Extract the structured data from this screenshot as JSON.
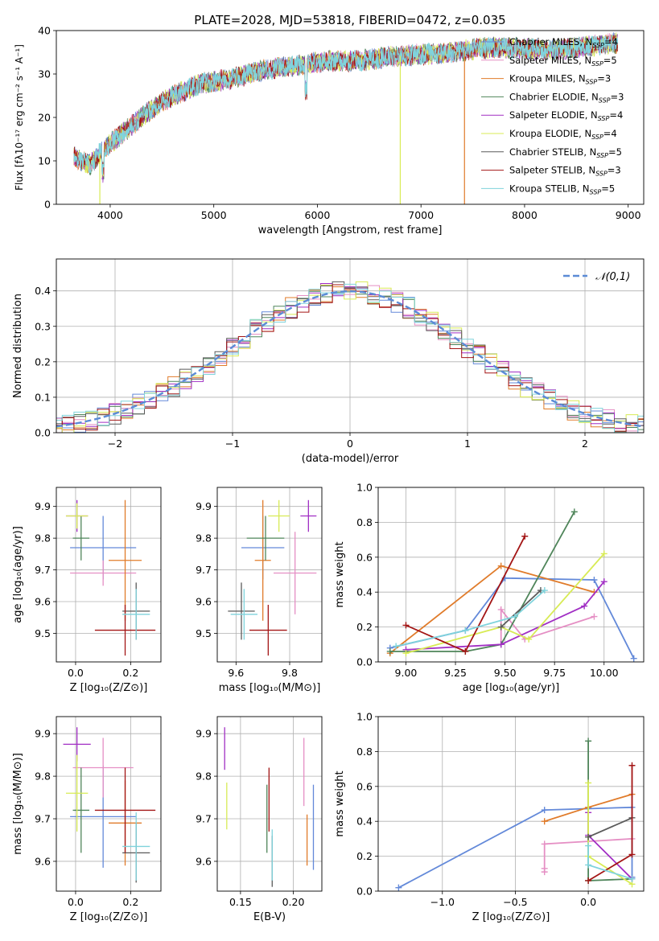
{
  "colors": [
    "#6389d9",
    "#e58fc4",
    "#e07b2a",
    "#4f855a",
    "#a12fc4",
    "#d8eb55",
    "#5a5a5a",
    "#a31515",
    "#7fd3dc"
  ],
  "chart_data": [
    {
      "id": "spectrum",
      "type": "line",
      "title": "PLATE=2028, MJD=53818, FIBERID=0472, z=0.035",
      "xlabel": "wavelength [Angstrom, rest frame]",
      "ylabel": "Flux [fλ10⁻¹⁷ erg cm⁻² s⁻¹ A⁻¹]",
      "xlim": [
        3480,
        9150
      ],
      "ylim": [
        0,
        40
      ],
      "xticks": [
        4000,
        5000,
        6000,
        7000,
        8000,
        9000
      ],
      "yticks": [
        0,
        10,
        20,
        30,
        40
      ],
      "grid": false,
      "legend": "top-right",
      "series": [
        {
          "name": "Chabrier MILES, N_SSP=4"
        },
        {
          "name": "Salpeter MILES, N_SSP=5"
        },
        {
          "name": "Kroupa MILES, N_SSP=3"
        },
        {
          "name": "Chabrier ELODIE, N_SSP=3"
        },
        {
          "name": "Salpeter ELODIE, N_SSP=4"
        },
        {
          "name": "Kroupa ELODIE, N_SSP=4"
        },
        {
          "name": "Chabrier STELIB, N_SSP=5"
        },
        {
          "name": "Salpeter STELIB, N_SSP=3"
        },
        {
          "name": "Kroupa STELIB, N_SSP=5"
        }
      ],
      "continuum": {
        "x": [
          3650,
          3800,
          3950,
          4150,
          4350,
          4600,
          4900,
          5200,
          5500,
          5800,
          6100,
          6400,
          6700,
          7000,
          7300,
          7600,
          7900,
          8200,
          8500,
          8800,
          8900
        ],
        "y": [
          11,
          9,
          13,
          17,
          21,
          25,
          28,
          29,
          31,
          32,
          33,
          33,
          34,
          34.5,
          35,
          36,
          36,
          35.5,
          36,
          37,
          37
        ]
      },
      "drops": [
        {
          "x": 3900,
          "series": 5
        },
        {
          "x": 6800,
          "series": 5
        },
        {
          "x": 7420,
          "series": 2
        }
      ]
    },
    {
      "id": "residuals",
      "type": "bar",
      "xlabel": "(data-model)/error",
      "ylabel": "Normed distribution",
      "xlim": [
        -2.5,
        2.5
      ],
      "ylim": [
        0,
        0.49
      ],
      "xticks": [
        -2,
        -1,
        0,
        1,
        2
      ],
      "yticks": [
        0.0,
        0.1,
        0.2,
        0.3,
        0.4
      ],
      "grid": true,
      "legend": "top-right",
      "reference": {
        "name": "𝒩(0,1)",
        "mean": 0,
        "sigma": 1
      },
      "bin_width": 0.1,
      "noise": 0.03
    },
    {
      "id": "age-vs-Z",
      "type": "scatter",
      "xlabel": "Z [log₁₀(Z/Z⊙)]",
      "ylabel": "age  [log₁₀(age/yr)]",
      "xlim": [
        -0.07,
        0.31
      ],
      "ylim": [
        9.41,
        9.96
      ],
      "xticks": [
        0.0,
        0.2
      ],
      "yticks": [
        9.5,
        9.6,
        9.7,
        9.8,
        9.9
      ],
      "grid": true,
      "points": [
        {
          "series": 0,
          "x": 0.1,
          "y": 9.77,
          "xerr": 0.12,
          "yerr": 0.1
        },
        {
          "series": 1,
          "x": 0.1,
          "y": 9.69,
          "xerr": 0.12,
          "yerr": 0.04
        },
        {
          "series": 2,
          "x": 0.18,
          "y": 9.73,
          "xerr": 0.06,
          "yerr": 0.19
        },
        {
          "series": 3,
          "x": 0.02,
          "y": 9.8,
          "xerr": 0.03,
          "yerr": 0.07
        },
        {
          "series": 4,
          "x": 0.005,
          "y": 9.87,
          "xerr": 0.04,
          "yerr": 0.05
        },
        {
          "series": 5,
          "x": 0.005,
          "y": 9.87,
          "xerr": 0.04,
          "yerr": 0.04
        },
        {
          "series": 6,
          "x": 0.22,
          "y": 9.57,
          "xerr": 0.05,
          "yerr": 0.09
        },
        {
          "series": 7,
          "x": 0.18,
          "y": 9.51,
          "xerr": 0.11,
          "yerr": 0.08
        },
        {
          "series": 8,
          "x": 0.22,
          "y": 9.56,
          "xerr": 0.05,
          "yerr": 0.08
        }
      ]
    },
    {
      "id": "age-vs-mass",
      "type": "scatter",
      "xlabel": "mass [log₁₀(M/M⊙)]",
      "ylabel": "",
      "xlim": [
        9.53,
        9.92
      ],
      "ylim": [
        9.41,
        9.96
      ],
      "xticks": [
        9.6,
        9.8
      ],
      "yticks": [
        9.5,
        9.6,
        9.7,
        9.8,
        9.9
      ],
      "grid": true,
      "points": [
        {
          "series": 0,
          "x": 9.7,
          "y": 9.77,
          "xerr": 0.08,
          "yerr": 0.1
        },
        {
          "series": 1,
          "x": 9.82,
          "y": 9.69,
          "xerr": 0.08,
          "yerr": 0.13
        },
        {
          "series": 2,
          "x": 9.7,
          "y": 9.73,
          "xerr": 0.03,
          "yerr": 0.19
        },
        {
          "series": 3,
          "x": 9.71,
          "y": 9.8,
          "xerr": 0.07,
          "yerr": 0.07
        },
        {
          "series": 4,
          "x": 9.87,
          "y": 9.87,
          "xerr": 0.03,
          "yerr": 0.05
        },
        {
          "series": 5,
          "x": 9.76,
          "y": 9.87,
          "xerr": 0.04,
          "yerr": 0.05
        },
        {
          "series": 6,
          "x": 9.62,
          "y": 9.57,
          "xerr": 0.05,
          "yerr": 0.09
        },
        {
          "series": 7,
          "x": 9.72,
          "y": 9.51,
          "xerr": 0.07,
          "yerr": 0.08
        },
        {
          "series": 8,
          "x": 9.63,
          "y": 9.56,
          "xerr": 0.05,
          "yerr": 0.08
        }
      ]
    },
    {
      "id": "massweight-vs-age",
      "type": "line",
      "xlabel": "age  [log₁₀(age/yr)]",
      "ylabel": "mass weight",
      "xlim": [
        8.86,
        10.2
      ],
      "ylim": [
        0,
        1
      ],
      "xticks": [
        9.0,
        9.25,
        9.5,
        9.75,
        10.0
      ],
      "yticks": [
        0.0,
        0.2,
        0.4,
        0.6,
        0.8,
        1.0
      ],
      "grid": true,
      "series": [
        {
          "series": 0,
          "x": [
            8.92,
            9.3,
            9.5,
            9.95,
            10.15
          ],
          "y": [
            0.08,
            0.18,
            0.48,
            0.47,
            0.02
          ]
        },
        {
          "series": 1,
          "x": [
            9.48,
            9.48,
            9.6,
            9.95
          ],
          "y": [
            0.1,
            0.3,
            0.13,
            0.26
          ]
        },
        {
          "series": 2,
          "x": [
            8.92,
            9.48,
            9.95
          ],
          "y": [
            0.05,
            0.55,
            0.4
          ]
        },
        {
          "series": 3,
          "x": [
            8.92,
            9.3,
            9.48,
            9.85
          ],
          "y": [
            0.06,
            0.06,
            0.1,
            0.86
          ]
        },
        {
          "series": 4,
          "x": [
            9.0,
            9.48,
            9.9,
            10.0
          ],
          "y": [
            0.07,
            0.1,
            0.32,
            0.46
          ]
        },
        {
          "series": 5,
          "x": [
            9.0,
            9.48,
            9.62,
            10.0
          ],
          "y": [
            0.05,
            0.2,
            0.13,
            0.62
          ]
        },
        {
          "series": 6,
          "x": [
            9.48,
            9.68
          ],
          "y": [
            0.2,
            0.41
          ]
        },
        {
          "series": 7,
          "x": [
            9.0,
            9.3,
            9.6
          ],
          "y": [
            0.21,
            0.06,
            0.72
          ]
        },
        {
          "series": 8,
          "x": [
            8.95,
            9.3,
            9.55,
            9.7
          ],
          "y": [
            0.09,
            0.18,
            0.26,
            0.41
          ]
        }
      ]
    },
    {
      "id": "mass-vs-Z",
      "type": "scatter",
      "xlabel": "Z [log₁₀(Z/Z⊙)]",
      "ylabel": "mass [log₁₀(M/M⊙)]",
      "xlim": [
        -0.07,
        0.31
      ],
      "ylim": [
        9.53,
        9.94
      ],
      "xticks": [
        0.0,
        0.2
      ],
      "yticks": [
        9.6,
        9.7,
        9.8,
        9.9
      ],
      "grid": true,
      "points": [
        {
          "series": 0,
          "x": 0.1,
          "y": 9.705,
          "xerr": 0.12,
          "yerr": 0.12
        },
        {
          "series": 1,
          "x": 0.1,
          "y": 9.82,
          "xerr": 0.11,
          "yerr": 0.07
        },
        {
          "series": 2,
          "x": 0.18,
          "y": 9.69,
          "xerr": 0.06,
          "yerr": 0.1
        },
        {
          "series": 3,
          "x": 0.02,
          "y": 9.72,
          "xerr": 0.03,
          "yerr": 0.1
        },
        {
          "series": 4,
          "x": 0.005,
          "y": 9.875,
          "xerr": 0.05,
          "yerr": 0.04
        },
        {
          "series": 5,
          "x": 0.005,
          "y": 9.76,
          "xerr": 0.04,
          "yerr": 0.09
        },
        {
          "series": 6,
          "x": 0.22,
          "y": 9.62,
          "xerr": 0.05,
          "yerr": 0.07
        },
        {
          "series": 7,
          "x": 0.18,
          "y": 9.72,
          "xerr": 0.11,
          "yerr": 0.1
        },
        {
          "series": 8,
          "x": 0.22,
          "y": 9.635,
          "xerr": 0.05,
          "yerr": 0.08
        }
      ]
    },
    {
      "id": "mass-vs-EBV",
      "type": "scatter",
      "xlabel": "E(B-V)",
      "ylabel": "",
      "xlim": [
        0.128,
        0.227
      ],
      "ylim": [
        9.53,
        9.94
      ],
      "xticks": [
        0.15,
        0.2
      ],
      "yticks": [
        9.6,
        9.7,
        9.8,
        9.9
      ],
      "grid": true,
      "points": [
        {
          "series": 0,
          "x": 0.219,
          "y": 9.68,
          "yerr": 0.1
        },
        {
          "series": 1,
          "x": 0.21,
          "y": 9.81,
          "yerr": 0.08
        },
        {
          "series": 2,
          "x": 0.213,
          "y": 9.65,
          "yerr": 0.06
        },
        {
          "series": 3,
          "x": 0.175,
          "y": 9.7,
          "yerr": 0.08
        },
        {
          "series": 4,
          "x": 0.135,
          "y": 9.865,
          "yerr": 0.05
        },
        {
          "series": 5,
          "x": 0.137,
          "y": 9.73,
          "yerr": 0.055
        },
        {
          "series": 6,
          "x": 0.18,
          "y": 9.6,
          "yerr": 0.06
        },
        {
          "series": 7,
          "x": 0.177,
          "y": 9.745,
          "yerr": 0.075
        },
        {
          "series": 8,
          "x": 0.18,
          "y": 9.615,
          "yerr": 0.06
        }
      ]
    },
    {
      "id": "massweight-vs-Z",
      "type": "line",
      "xlabel": "Z [log₁₀(Z/Z⊙)]",
      "ylabel": "mass weight",
      "xlim": [
        -1.44,
        0.38
      ],
      "ylim": [
        0,
        1
      ],
      "xticks": [
        -1.0,
        -0.5,
        0.0
      ],
      "yticks": [
        0.0,
        0.2,
        0.4,
        0.6,
        0.8,
        1.0
      ],
      "grid": true,
      "series": [
        {
          "series": 0,
          "x": [
            -1.3,
            -0.3,
            0.3,
            0.3
          ],
          "y": [
            0.02,
            0.465,
            0.48,
            0.08
          ]
        },
        {
          "series": 1,
          "x": [
            -0.3,
            -0.3,
            -0.3,
            0.3
          ],
          "y": [
            0.11,
            0.13,
            0.27,
            0.3
          ]
        },
        {
          "series": 2,
          "x": [
            -0.3,
            0.0,
            0.3
          ],
          "y": [
            0.4,
            0.48,
            0.555
          ]
        },
        {
          "series": 3,
          "x": [
            0.0,
            0.0,
            0.3
          ],
          "y": [
            0.86,
            0.06,
            0.07
          ]
        },
        {
          "series": 4,
          "x": [
            0.0,
            0.0,
            0.3
          ],
          "y": [
            0.45,
            0.32,
            0.07
          ]
        },
        {
          "series": 5,
          "x": [
            0.0,
            0.0,
            0.3
          ],
          "y": [
            0.62,
            0.2,
            0.04
          ]
        },
        {
          "series": 6,
          "x": [
            0.0,
            0.3
          ],
          "y": [
            0.31,
            0.42
          ]
        },
        {
          "series": 7,
          "x": [
            0.0,
            0.3,
            0.3
          ],
          "y": [
            0.06,
            0.21,
            0.72
          ]
        },
        {
          "series": 8,
          "x": [
            0.0,
            0.0,
            0.3
          ],
          "y": [
            0.26,
            0.15,
            0.07
          ]
        }
      ]
    }
  ]
}
